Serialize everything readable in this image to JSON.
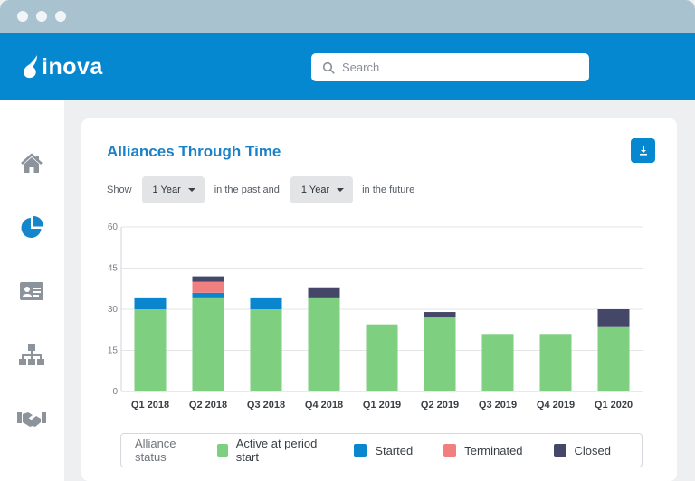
{
  "header": {
    "logo_text": "inova",
    "search_placeholder": "Search"
  },
  "sidebar": {
    "items": [
      {
        "icon": "home-icon"
      },
      {
        "icon": "pie-chart-icon",
        "active": true
      },
      {
        "icon": "contact-card-icon"
      },
      {
        "icon": "org-chart-icon"
      },
      {
        "icon": "handshake-icon"
      }
    ]
  },
  "card": {
    "title": "Alliances Through Time",
    "download_icon": "download-icon"
  },
  "filters": {
    "show_label": "Show",
    "past_value": "1 Year",
    "past_label": "in the past and",
    "future_value": "1 Year",
    "future_label": "in the future"
  },
  "colors": {
    "accent": "#0688d1",
    "active": "#7ecf7f",
    "started": "#0a86cf",
    "terminated": "#f08080",
    "closed": "#454768"
  },
  "chart_data": {
    "type": "bar",
    "stacked": true,
    "categories": [
      "Q1 2018",
      "Q2 2018",
      "Q3 2018",
      "Q4 2018",
      "Q1 2019",
      "Q2 2019",
      "Q3 2019",
      "Q4 2019",
      "Q1 2020"
    ],
    "series": [
      {
        "name": "Active at period start",
        "color": "#7ecf7f",
        "values": [
          30,
          34,
          30,
          34,
          24.5,
          27,
          21,
          21,
          23.5
        ]
      },
      {
        "name": "Started",
        "color": "#0a86cf",
        "values": [
          4,
          2,
          4,
          0,
          0,
          0,
          0,
          0,
          0
        ]
      },
      {
        "name": "Terminated",
        "color": "#f08080",
        "values": [
          0,
          4,
          0,
          0,
          0,
          0,
          0,
          0,
          0
        ]
      },
      {
        "name": "Closed",
        "color": "#454768",
        "values": [
          0,
          2,
          0,
          4,
          0,
          2,
          0,
          0,
          6.5
        ]
      }
    ],
    "yticks": [
      0,
      15,
      30,
      45,
      60
    ],
    "ylim": [
      0,
      60
    ],
    "grid": true,
    "legend_title": "Alliance status",
    "legend_position": "bottom"
  }
}
